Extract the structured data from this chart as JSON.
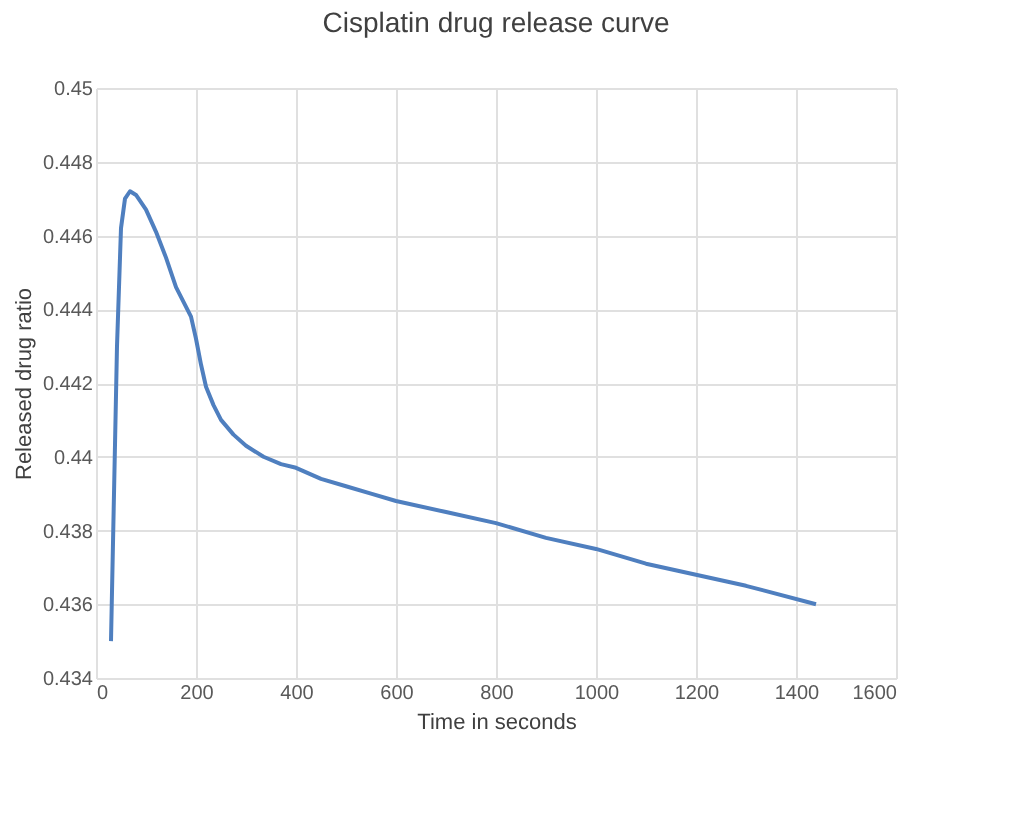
{
  "chart_data": {
    "type": "line",
    "title": "Cisplatin drug release curve",
    "xlabel": "Time in seconds",
    "ylabel": "Released drug ratio",
    "series": [
      {
        "color": "#4f7fbf",
        "x": [
          30,
          36,
          42,
          50,
          58,
          68,
          80,
          100,
          120,
          140,
          160,
          175,
          190,
          200,
          210,
          220,
          235,
          250,
          275,
          300,
          335,
          370,
          400,
          450,
          500,
          550,
          600,
          700,
          800,
          900,
          1000,
          1100,
          1200,
          1300,
          1440
        ],
        "values": [
          0.435,
          0.439,
          0.443,
          0.4462,
          0.447,
          0.4472,
          0.4471,
          0.4467,
          0.4461,
          0.4454,
          0.4446,
          0.4442,
          0.4438,
          0.4432,
          0.4425,
          0.4419,
          0.4414,
          0.441,
          0.4406,
          0.4403,
          0.44,
          0.4398,
          0.4397,
          0.4394,
          0.4392,
          0.439,
          0.4388,
          0.4385,
          0.4382,
          0.4378,
          0.4375,
          0.4371,
          0.4368,
          0.4365,
          0.436
        ]
      }
    ],
    "xlim": [
      0,
      1600
    ],
    "xticks": [
      0,
      200,
      400,
      600,
      800,
      1000,
      1200,
      1400,
      1600
    ],
    "ylim": [
      0.434,
      0.45
    ],
    "yticks": [
      0.434,
      0.436,
      0.438,
      0.44,
      0.442,
      0.444,
      0.446,
      0.448,
      0.45
    ],
    "grid": true,
    "marker": "none",
    "line_style": "solid"
  }
}
